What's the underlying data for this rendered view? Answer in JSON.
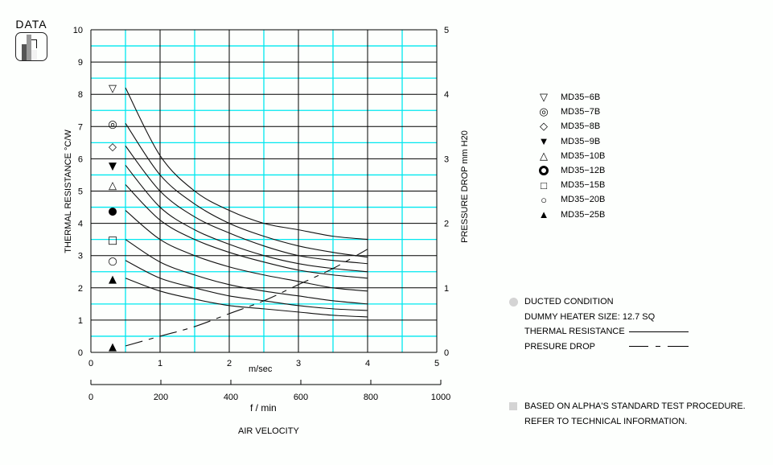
{
  "badge": {
    "label": "DATA",
    "icon": "bar-chart-icon"
  },
  "chart_data": {
    "type": "line",
    "title": "",
    "xlabel": "AIR VELOCITY",
    "x_primary_unit": "m/sec",
    "x_secondary_unit": "f / min",
    "ylabel": "THERMAL RESISTANCE  °C/W",
    "y2label": "PRESSURE DROP  mm H20",
    "xlim": [
      0,
      5
    ],
    "ylim": [
      0,
      10
    ],
    "y2lim": [
      0,
      5
    ],
    "x_ticks": [
      "0",
      "1",
      "2",
      "3",
      "4",
      "5"
    ],
    "x2_ticks": [
      "0",
      "200",
      "400",
      "600",
      "800",
      "1000"
    ],
    "y_ticks": [
      "0",
      "1",
      "2",
      "3",
      "4",
      "5",
      "6",
      "7",
      "8",
      "9",
      "10"
    ],
    "y2_ticks": [
      "0",
      "1",
      "2",
      "3",
      "4",
      "5"
    ],
    "grid": true,
    "x": [
      0.5,
      1.0,
      1.5,
      2.0,
      2.5,
      3.0,
      3.5,
      4.0
    ],
    "series": [
      {
        "name": "MD35-6B",
        "marker": "▽",
        "axis": "left",
        "values": [
          8.2,
          6.1,
          5.0,
          4.4,
          4.0,
          3.8,
          3.6,
          3.5
        ]
      },
      {
        "name": "MD35-7B",
        "marker": "◎",
        "axis": "left",
        "values": [
          7.1,
          5.5,
          4.6,
          4.0,
          3.6,
          3.3,
          3.1,
          2.95
        ]
      },
      {
        "name": "MD35-8B",
        "marker": "◇",
        "axis": "left",
        "values": [
          6.4,
          5.0,
          4.2,
          3.7,
          3.3,
          3.0,
          2.85,
          2.75
        ]
      },
      {
        "name": "MD35-9B",
        "marker": "▼",
        "axis": "left",
        "values": [
          5.8,
          4.5,
          3.8,
          3.35,
          3.0,
          2.75,
          2.6,
          2.5
        ]
      },
      {
        "name": "MD35-10B",
        "marker": "△",
        "axis": "left",
        "values": [
          5.2,
          4.1,
          3.5,
          3.1,
          2.8,
          2.55,
          2.4,
          2.3
        ]
      },
      {
        "name": "MD35-12B",
        "marker": "●",
        "axis": "left",
        "values": [
          4.4,
          3.5,
          3.0,
          2.65,
          2.4,
          2.2,
          2.0,
          1.9
        ]
      },
      {
        "name": "MD35-15B",
        "marker": "□",
        "axis": "left",
        "values": [
          3.5,
          2.8,
          2.4,
          2.1,
          1.9,
          1.75,
          1.6,
          1.5
        ]
      },
      {
        "name": "MD35-20B",
        "marker": "○",
        "axis": "left",
        "values": [
          2.85,
          2.3,
          2.0,
          1.75,
          1.6,
          1.45,
          1.35,
          1.3
        ]
      },
      {
        "name": "MD35-25B",
        "marker": "▲",
        "axis": "left",
        "values": [
          2.3,
          1.9,
          1.65,
          1.45,
          1.35,
          1.25,
          1.15,
          1.1
        ]
      },
      {
        "name": "PRESSURE DROP",
        "marker": "▲",
        "axis": "right",
        "style": "dashed",
        "values": [
          0.1,
          0.25,
          0.4,
          0.6,
          0.8,
          1.05,
          1.3,
          1.6
        ]
      }
    ],
    "legend_position": "right"
  },
  "legend": {
    "items": [
      {
        "symbol": "▽",
        "label": "MD35−6B"
      },
      {
        "symbol": "◎",
        "label": "MD35−7B"
      },
      {
        "symbol": "◇",
        "label": "MD35−8B"
      },
      {
        "symbol": "▼",
        "label": "MD35−9B"
      },
      {
        "symbol": "△",
        "label": "MD35−10B"
      },
      {
        "symbol": "●",
        "label": "MD35−12B"
      },
      {
        "symbol": "□",
        "label": "MD35−15B"
      },
      {
        "symbol": "○",
        "label": "MD35−20B"
      },
      {
        "symbol": "▲",
        "label": "MD35−25B"
      }
    ]
  },
  "notes": {
    "condition": "DUCTED CONDITION",
    "heater": "DUMMY HEATER SIZE: 12.7 SQ",
    "thermal_label": "THERMAL RESISTANCE",
    "pressure_label": "PRESURE DROP",
    "footer_1": "BASED ON ALPHA'S STANDARD TEST PROCEDURE.",
    "footer_2": "REFER TO TECHNICAL INFORMATION."
  },
  "colors": {
    "grid_major": "#000000",
    "grid_minor": "#00e8f0",
    "accent_gray": "#d4d4d4"
  }
}
